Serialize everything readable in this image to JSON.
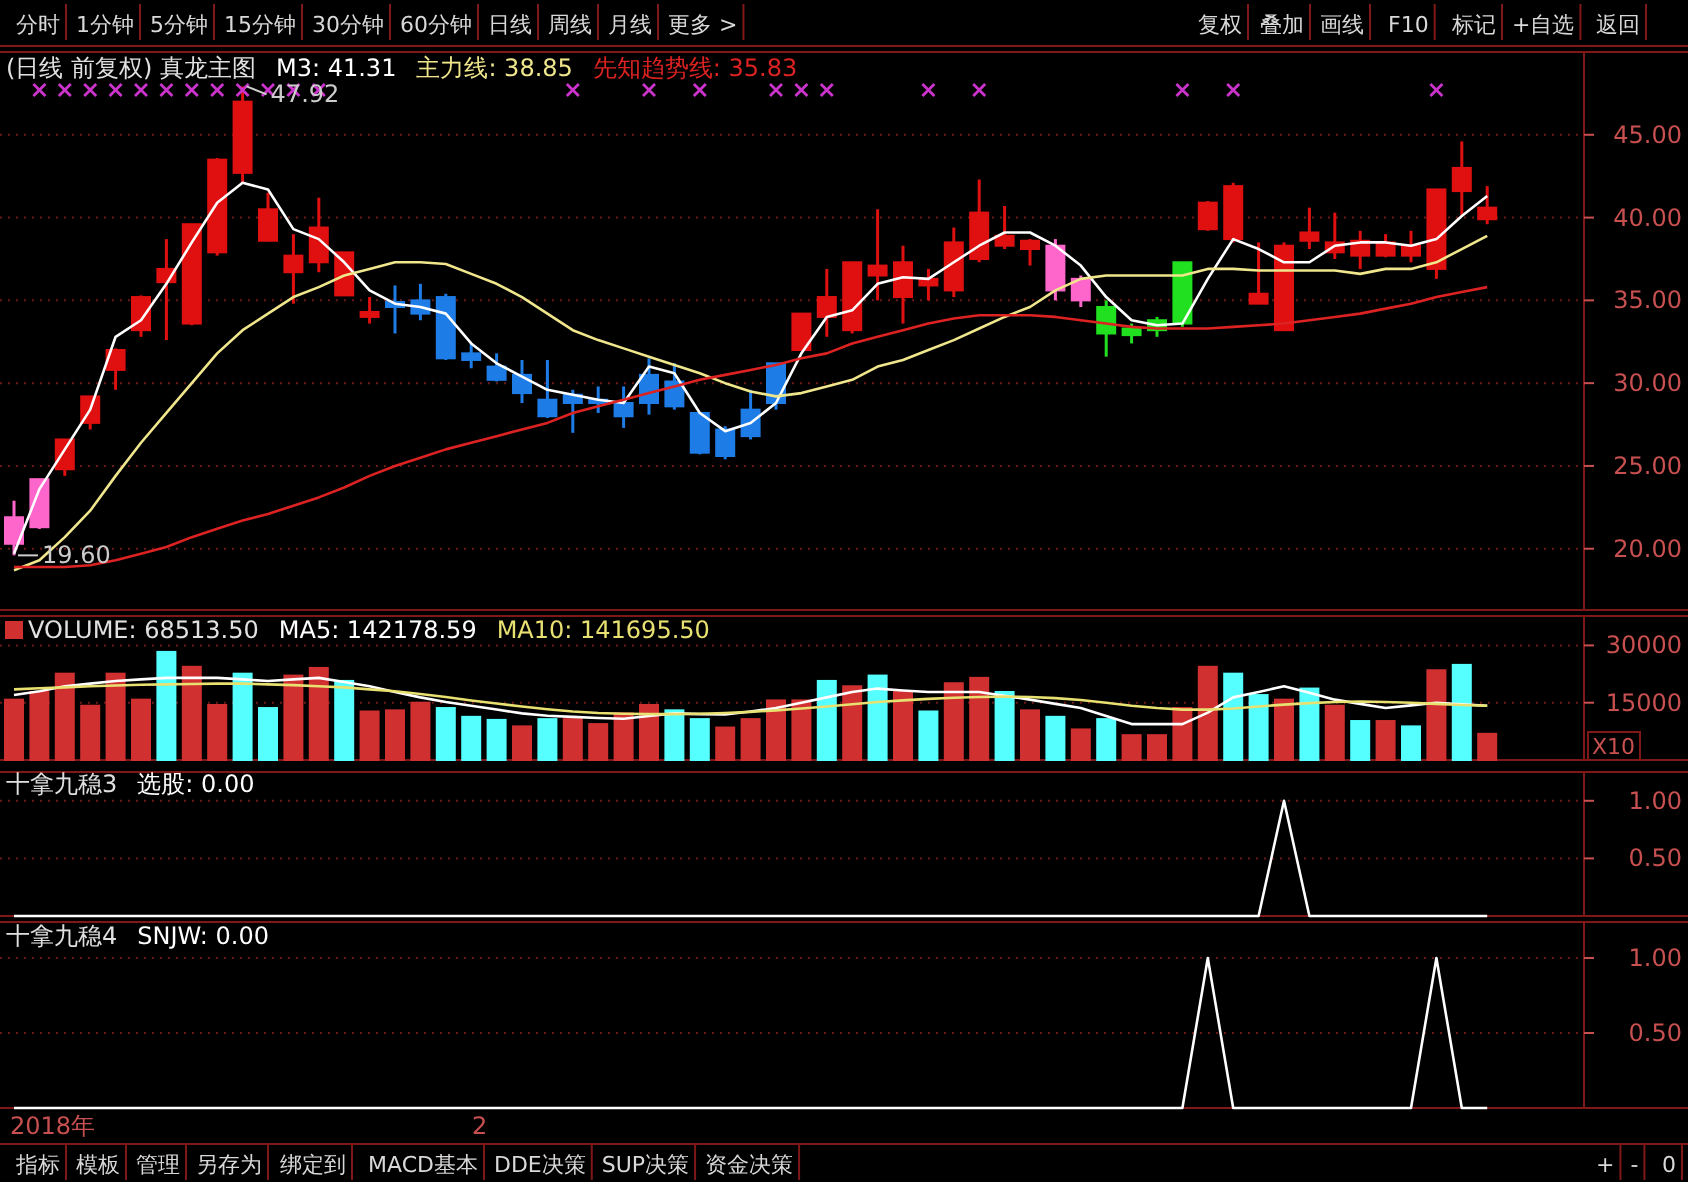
{
  "chart_data": [
    {
      "type": "other",
      "annotations": [
        "分时",
        "1分钟",
        "5分钟",
        "15分钟",
        "30分钟",
        "60分钟",
        "日线",
        "周线",
        "月线",
        "更多 >",
        "复权",
        "叠加",
        "画线",
        "F10",
        "标记",
        "+自选",
        "返回"
      ]
    },
    {
      "type": "candlestick",
      "title": "(日线 前复权) 真龙主图",
      "legend": "top left",
      "grid": "y",
      "categories": [
        null,
        null,
        null,
        null,
        null,
        null,
        null,
        null,
        null,
        null,
        null,
        null,
        null,
        null,
        null,
        null,
        null,
        null,
        null,
        null,
        null,
        null,
        null,
        null,
        null,
        null,
        null,
        null,
        null,
        null,
        null,
        null,
        null,
        null,
        null,
        null,
        null,
        null,
        null,
        null,
        null,
        null,
        null,
        null,
        null,
        null,
        null,
        null,
        null,
        null,
        null,
        null,
        null,
        null,
        null,
        null,
        null,
        null,
        null
      ],
      "ohlc": [
        [
          20.3,
          22.9,
          19.6,
          21.9
        ],
        [
          21.3,
          24.2,
          21.2,
          24.2
        ],
        [
          24.8,
          26.6,
          24.4,
          26.6
        ],
        [
          27.6,
          29.2,
          27.2,
          29.2
        ],
        [
          30.8,
          32.1,
          29.6,
          32.0
        ],
        [
          33.2,
          35.3,
          32.8,
          35.2
        ],
        [
          36.1,
          38.7,
          32.6,
          36.9
        ],
        [
          33.6,
          39.6,
          33.5,
          39.6
        ],
        [
          37.9,
          43.6,
          37.7,
          43.5
        ],
        [
          42.7,
          47.92,
          42.1,
          47.0
        ],
        [
          38.6,
          41.5,
          38.6,
          40.5
        ],
        [
          36.7,
          39.0,
          34.8,
          37.7
        ],
        [
          37.3,
          41.2,
          36.7,
          39.4
        ],
        [
          35.3,
          37.9,
          35.3,
          37.9
        ],
        [
          34.0,
          35.2,
          33.6,
          34.3
        ],
        [
          34.9,
          35.9,
          33.0,
          34.6
        ],
        [
          35.0,
          36.0,
          33.8,
          34.2
        ],
        [
          35.2,
          35.4,
          31.4,
          31.5
        ],
        [
          31.8,
          32.4,
          30.9,
          31.4
        ],
        [
          31.0,
          31.8,
          30.1,
          30.2
        ],
        [
          30.5,
          31.4,
          28.8,
          29.4
        ],
        [
          29.0,
          31.4,
          27.9,
          28.0
        ],
        [
          29.3,
          29.6,
          27.0,
          28.8
        ],
        [
          29.0,
          29.8,
          28.2,
          28.8
        ],
        [
          28.8,
          29.8,
          27.3,
          28.0
        ],
        [
          30.5,
          31.5,
          28.1,
          28.8
        ],
        [
          30.1,
          31.2,
          28.4,
          28.6
        ],
        [
          28.2,
          28.2,
          25.7,
          25.8
        ],
        [
          27.2,
          27.4,
          25.4,
          25.6
        ],
        [
          28.4,
          29.6,
          26.6,
          26.8
        ],
        [
          31.2,
          31.2,
          28.4,
          28.8
        ],
        [
          32.0,
          34.2,
          32.0,
          34.2
        ],
        [
          34.0,
          36.9,
          32.8,
          35.2
        ],
        [
          33.2,
          37.3,
          33.0,
          37.3
        ],
        [
          36.5,
          40.5,
          35.0,
          37.1
        ],
        [
          35.2,
          38.3,
          33.6,
          37.3
        ],
        [
          35.9,
          36.9,
          35.0,
          36.3
        ],
        [
          35.6,
          39.4,
          35.2,
          38.5
        ],
        [
          37.5,
          42.3,
          37.3,
          40.3
        ],
        [
          38.3,
          40.7,
          38.1,
          38.9
        ],
        [
          38.1,
          38.7,
          37.1,
          38.6
        ],
        [
          35.6,
          38.7,
          35.0,
          38.3
        ],
        [
          35.0,
          36.5,
          34.6,
          36.3
        ],
        [
          34.6,
          35.0,
          31.6,
          33.0
        ],
        [
          33.3,
          33.6,
          32.4,
          32.9
        ],
        [
          33.8,
          34.0,
          32.8,
          33.2
        ],
        [
          37.3,
          37.3,
          33.4,
          33.6
        ],
        [
          39.3,
          41.0,
          39.2,
          40.9
        ],
        [
          38.7,
          42.1,
          38.5,
          41.9
        ],
        [
          34.8,
          38.5,
          34.8,
          35.4
        ],
        [
          33.2,
          38.5,
          33.2,
          38.3
        ],
        [
          38.6,
          40.6,
          38.1,
          39.1
        ],
        [
          37.9,
          40.3,
          37.5,
          38.5
        ],
        [
          37.7,
          39.2,
          36.9,
          38.6
        ],
        [
          37.7,
          39.0,
          37.6,
          38.5
        ],
        [
          37.7,
          39.2,
          37.3,
          38.3
        ],
        [
          36.9,
          41.7,
          36.3,
          41.7
        ],
        [
          41.6,
          44.6,
          40.1,
          43.0
        ],
        [
          39.9,
          41.9,
          39.6,
          40.6
        ]
      ],
      "colors": [
        "#ff66cc",
        "#ff66cc",
        "#e01010",
        "#e01010",
        "#e01010",
        "#e01010",
        "#e01010",
        "#e01010",
        "#e01010",
        "#e01010",
        "#e01010",
        "#e01010",
        "#e01010",
        "#e01010",
        "#e01010",
        "#1e7ce6",
        "#1e7ce6",
        "#1e7ce6",
        "#1e7ce6",
        "#1e7ce6",
        "#1e7ce6",
        "#1e7ce6",
        "#1e7ce6",
        "#1e7ce6",
        "#1e7ce6",
        "#1e7ce6",
        "#1e7ce6",
        "#1e7ce6",
        "#1e7ce6",
        "#1e7ce6",
        "#1e7ce6",
        "#e01010",
        "#e01010",
        "#e01010",
        "#e01010",
        "#e01010",
        "#e01010",
        "#e01010",
        "#e01010",
        "#e01010",
        "#e01010",
        "#ff66cc",
        "#ff66cc",
        "#20e020",
        "#20e020",
        "#20e020",
        "#20e020",
        "#e01010",
        "#e01010",
        "#e01010",
        "#e01010",
        "#e01010",
        "#e01010",
        "#e01010",
        "#e01010",
        "#e01010",
        "#e01010",
        "#e01010",
        "#e01010"
      ],
      "series": [
        {
          "type": "line",
          "name": "M3: 41.31",
          "color": "#ffffff",
          "values": [
            19.7,
            23.6,
            26.0,
            28.4,
            32.8,
            33.8,
            36.0,
            38.5,
            40.9,
            42.1,
            41.7,
            39.3,
            38.7,
            37.3,
            35.6,
            34.8,
            34.6,
            34.2,
            32.4,
            31.2,
            30.4,
            29.6,
            29.3,
            29.0,
            28.8,
            31.0,
            30.6,
            28.2,
            27.1,
            27.6,
            28.8,
            31.8,
            34.0,
            34.4,
            36.0,
            36.4,
            36.3,
            37.3,
            38.3,
            39.1,
            39.1,
            38.3,
            37.1,
            35.2,
            33.8,
            33.5,
            33.6,
            36.3,
            38.7,
            38.1,
            37.3,
            37.3,
            38.3,
            38.5,
            38.5,
            38.3,
            38.7,
            40.1,
            41.3
          ]
        },
        {
          "type": "line",
          "name": "主力线: 38.85",
          "color": "#f0e68c",
          "values": [
            18.7,
            19.3,
            20.7,
            22.3,
            24.4,
            26.4,
            28.2,
            30.0,
            31.8,
            33.2,
            34.2,
            35.2,
            35.8,
            36.5,
            36.9,
            37.3,
            37.3,
            37.2,
            36.6,
            36.0,
            35.2,
            34.2,
            33.2,
            32.6,
            32.1,
            31.6,
            31.1,
            30.6,
            30.0,
            29.5,
            29.2,
            29.4,
            29.8,
            30.2,
            31.0,
            31.4,
            32.0,
            32.6,
            33.3,
            34.0,
            34.6,
            35.6,
            36.3,
            36.5,
            36.5,
            36.5,
            36.5,
            36.9,
            36.9,
            36.8,
            36.8,
            36.8,
            36.8,
            36.6,
            36.9,
            36.9,
            37.3,
            38.1,
            38.9
          ]
        },
        {
          "type": "line",
          "name": "先知趋势线: 35.83",
          "color": "#dd2222",
          "values": [
            18.9,
            18.9,
            18.9,
            19.0,
            19.3,
            19.7,
            20.1,
            20.7,
            21.2,
            21.7,
            22.1,
            22.6,
            23.1,
            23.7,
            24.4,
            25.0,
            25.5,
            26.0,
            26.4,
            26.8,
            27.2,
            27.6,
            28.2,
            28.6,
            29.0,
            29.4,
            29.8,
            30.2,
            30.5,
            30.8,
            31.1,
            31.5,
            31.8,
            32.4,
            32.8,
            33.2,
            33.6,
            33.9,
            34.1,
            34.1,
            34.1,
            34.0,
            33.8,
            33.6,
            33.4,
            33.3,
            33.3,
            33.3,
            33.4,
            33.5,
            33.6,
            33.8,
            34.0,
            34.2,
            34.5,
            34.8,
            35.2,
            35.5,
            35.8
          ]
        },
        {
          "type": "scatter",
          "color": "#cc33cc",
          "marker": "cross",
          "values": [
            null,
            47.7,
            47.7,
            47.7,
            47.7,
            47.7,
            47.7,
            47.7,
            47.7,
            47.7,
            47.7,
            47.7,
            47.7,
            null,
            null,
            null,
            null,
            null,
            null,
            null,
            null,
            null,
            47.7,
            null,
            null,
            47.7,
            null,
            47.7,
            null,
            null,
            47.7,
            47.7,
            47.7,
            null,
            null,
            null,
            47.7,
            null,
            47.7,
            null,
            null,
            null,
            null,
            null,
            null,
            null,
            47.7,
            null,
            47.7,
            null,
            null,
            null,
            null,
            null,
            null,
            null,
            47.7,
            null,
            null
          ]
        }
      ],
      "ylim": [
        16.3,
        50.0
      ],
      "yticks": [
        {
          "value": 20,
          "label": "20.00"
        },
        {
          "value": 25,
          "label": "25.00"
        },
        {
          "value": 30,
          "label": "30.00"
        },
        {
          "value": 35,
          "label": "35.00"
        },
        {
          "value": 40,
          "label": "40.00"
        },
        {
          "value": 45,
          "label": "45.00"
        }
      ],
      "annotations": [
        {
          "text": "47.92",
          "y": 47.92
        },
        {
          "text": "19.60",
          "y": 19.6
        }
      ]
    },
    {
      "type": "bar",
      "legend": "top left",
      "grid": "y",
      "ylabel": "X10",
      "categories": [
        null,
        null,
        null,
        null,
        null,
        null,
        null,
        null,
        null,
        null,
        null,
        null,
        null,
        null,
        null,
        null,
        null,
        null,
        null,
        null,
        null,
        null,
        null,
        null,
        null,
        null,
        null,
        null,
        null,
        null,
        null,
        null,
        null,
        null,
        null,
        null,
        null,
        null,
        null,
        null,
        null,
        null,
        null,
        null,
        null,
        null,
        null,
        null,
        null,
        null,
        null,
        null,
        null,
        null,
        null,
        null,
        null,
        null,
        null
      ],
      "series": [
        {
          "type": "bar",
          "name": "VOLUME: 68513.50",
          "colors": [
            "#d03030",
            "#d03030",
            "#d03030",
            "#d03030",
            "#d03030",
            "#d03030",
            "#55ffff",
            "#d03030",
            "#d03030",
            "#55ffff",
            "#55ffff",
            "#d03030",
            "#d03030",
            "#55ffff",
            "#d03030",
            "#d03030",
            "#d03030",
            "#55ffff",
            "#55ffff",
            "#55ffff",
            "#d03030",
            "#55ffff",
            "#d03030",
            "#d03030",
            "#d03030",
            "#d03030",
            "#55ffff",
            "#55ffff",
            "#d03030",
            "#d03030",
            "#d03030",
            "#d03030",
            "#55ffff",
            "#d03030",
            "#55ffff",
            "#d03030",
            "#55ffff",
            "#d03030",
            "#d03030",
            "#55ffff",
            "#d03030",
            "#55ffff",
            "#d03030",
            "#55ffff",
            "#d03030",
            "#d03030",
            "#d03030",
            "#d03030",
            "#55ffff",
            "#55ffff",
            "#d03030",
            "#55ffff",
            "#d03030",
            "#55ffff",
            "#d03030",
            "#55ffff",
            "#d03030",
            "#55ffff",
            "#d03030"
          ],
          "values": [
            15800,
            17800,
            22600,
            14200,
            22600,
            15800,
            28300,
            24400,
            14400,
            22600,
            13600,
            22100,
            24100,
            20700,
            12700,
            13000,
            15000,
            13600,
            11300,
            10500,
            8800,
            10700,
            10700,
            9400,
            12200,
            14400,
            13000,
            10700,
            8500,
            10700,
            15600,
            15600,
            20700,
            19300,
            22100,
            17800,
            12700,
            20100,
            21500,
            17800,
            13000,
            11300,
            8000,
            10700,
            6500,
            6500,
            13600,
            24400,
            22600,
            17000,
            15800,
            18700,
            14200,
            10200,
            10200,
            8800,
            23500,
            24900,
            6850
          ]
        },
        {
          "type": "line",
          "name": "MA5: 142178.59",
          "color": "#ffffff",
          "values": [
            17000,
            18000,
            19300,
            20000,
            20700,
            21100,
            21500,
            21500,
            21500,
            21100,
            20700,
            21100,
            21500,
            20400,
            19300,
            17800,
            16400,
            15200,
            14200,
            13200,
            12200,
            11600,
            11300,
            11000,
            10800,
            11500,
            12200,
            12000,
            11900,
            12700,
            13600,
            15000,
            16400,
            17800,
            18700,
            18200,
            17800,
            17800,
            17800,
            16800,
            15800,
            14700,
            13600,
            11500,
            9400,
            9400,
            9400,
            12400,
            16400,
            17800,
            19300,
            17600,
            15800,
            14700,
            13600,
            14300,
            15000,
            14600,
            14200
          ]
        },
        {
          "type": "line",
          "name": "MA10: 141695.50",
          "color": "#e8e070",
          "values": [
            18500,
            18800,
            19000,
            19300,
            19500,
            19700,
            19800,
            19900,
            20000,
            20000,
            19800,
            19600,
            19300,
            19000,
            18500,
            18000,
            17300,
            16500,
            15600,
            14800,
            14000,
            13300,
            12700,
            12300,
            12100,
            12000,
            12000,
            12100,
            12300,
            12600,
            13000,
            13500,
            14000,
            14600,
            15200,
            15600,
            16000,
            16300,
            16500,
            16600,
            16500,
            16200,
            15700,
            15000,
            14200,
            13600,
            13200,
            13200,
            13500,
            14000,
            14500,
            14900,
            15200,
            15300,
            15200,
            15000,
            14700,
            14400,
            14200
          ]
        }
      ],
      "ylim": [
        0,
        37700
      ],
      "yticks": [
        15000,
        30000
      ]
    },
    {
      "type": "line",
      "title": "十拿九稳3",
      "legend": "top left",
      "grid": "y",
      "categories": [
        null,
        null,
        null,
        null,
        null,
        null,
        null,
        null,
        null,
        null,
        null,
        null,
        null,
        null,
        null,
        null,
        null,
        null,
        null,
        null,
        null,
        null,
        null,
        null,
        null,
        null,
        null,
        null,
        null,
        null,
        null,
        null,
        null,
        null,
        null,
        null,
        null,
        null,
        null,
        null,
        null,
        null,
        null,
        null,
        null,
        null,
        null,
        null,
        null,
        null,
        null,
        null,
        null,
        null,
        null,
        null,
        null,
        null,
        null
      ],
      "series": [
        {
          "name": "选股: 0.00",
          "color": "#ffffff",
          "values": [
            0,
            0,
            0,
            0,
            0,
            0,
            0,
            0,
            0,
            0,
            0,
            0,
            0,
            0,
            0,
            0,
            0,
            0,
            0,
            0,
            0,
            0,
            0,
            0,
            0,
            0,
            0,
            0,
            0,
            0,
            0,
            0,
            0,
            0,
            0,
            0,
            0,
            0,
            0,
            0,
            0,
            0,
            0,
            0,
            0,
            0,
            0,
            0,
            0,
            0,
            1,
            0,
            0,
            0,
            0,
            0,
            0,
            0,
            0
          ]
        }
      ],
      "ylim": [
        0,
        1.25
      ],
      "yticks": [
        {
          "value": 0.5,
          "label": "0.50"
        },
        {
          "value": 1,
          "label": "1.00"
        }
      ]
    },
    {
      "type": "line",
      "title": "十拿九稳4",
      "legend": "top left",
      "grid": "y",
      "categories": [
        null,
        null,
        null,
        null,
        null,
        null,
        null,
        null,
        null,
        null,
        null,
        null,
        null,
        null,
        null,
        null,
        null,
        null,
        null,
        null,
        null,
        null,
        null,
        null,
        null,
        null,
        null,
        null,
        null,
        null,
        null,
        null,
        null,
        null,
        null,
        null,
        null,
        null,
        null,
        null,
        null,
        null,
        null,
        null,
        null,
        null,
        null,
        null,
        null,
        null,
        null,
        null,
        null,
        null,
        null,
        null,
        null,
        null,
        null
      ],
      "series": [
        {
          "name": "SNJW: 0.00",
          "color": "#ffffff",
          "values": [
            0,
            0,
            0,
            0,
            0,
            0,
            0,
            0,
            0,
            0,
            0,
            0,
            0,
            0,
            0,
            0,
            0,
            0,
            0,
            0,
            0,
            0,
            0,
            0,
            0,
            0,
            0,
            0,
            0,
            0,
            0,
            0,
            0,
            0,
            0,
            0,
            0,
            0,
            0,
            0,
            0,
            0,
            0,
            0,
            0,
            0,
            0,
            1,
            0,
            0,
            0,
            0,
            0,
            0,
            0,
            0,
            1,
            0,
            0
          ]
        }
      ],
      "ylim": [
        0,
        1.24
      ],
      "yticks": [
        {
          "value": 0.5,
          "label": "0.50"
        },
        {
          "value": 1,
          "label": "1.00"
        }
      ],
      "annotations": [
        "2018年",
        "2"
      ]
    },
    {
      "type": "other",
      "annotations": [
        "指标",
        "模板",
        "管理",
        "另存为",
        "绑定到",
        "MACD基本",
        "DDE决策",
        "SUP决策",
        "资金决策",
        "+",
        "-",
        "0"
      ]
    }
  ]
}
